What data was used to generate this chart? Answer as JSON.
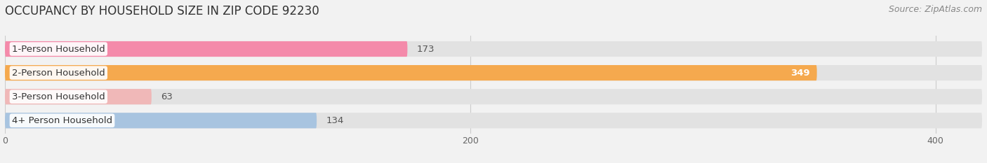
{
  "title": "OCCUPANCY BY HOUSEHOLD SIZE IN ZIP CODE 92230",
  "source": "Source: ZipAtlas.com",
  "categories": [
    "1-Person Household",
    "2-Person Household",
    "3-Person Household",
    "4+ Person Household"
  ],
  "values": [
    173,
    349,
    63,
    134
  ],
  "bar_colors": [
    "#f48aaa",
    "#f5a94e",
    "#f0b8b8",
    "#a8c4e0"
  ],
  "label_colors": [
    "#555555",
    "#ffffff",
    "#555555",
    "#555555"
  ],
  "xlim": [
    0,
    420
  ],
  "xticks": [
    0,
    200,
    400
  ],
  "background_color": "#f2f2f2",
  "bar_background_color": "#e2e2e2",
  "title_fontsize": 12,
  "source_fontsize": 9,
  "label_fontsize": 9.5,
  "value_fontsize": 9.5
}
